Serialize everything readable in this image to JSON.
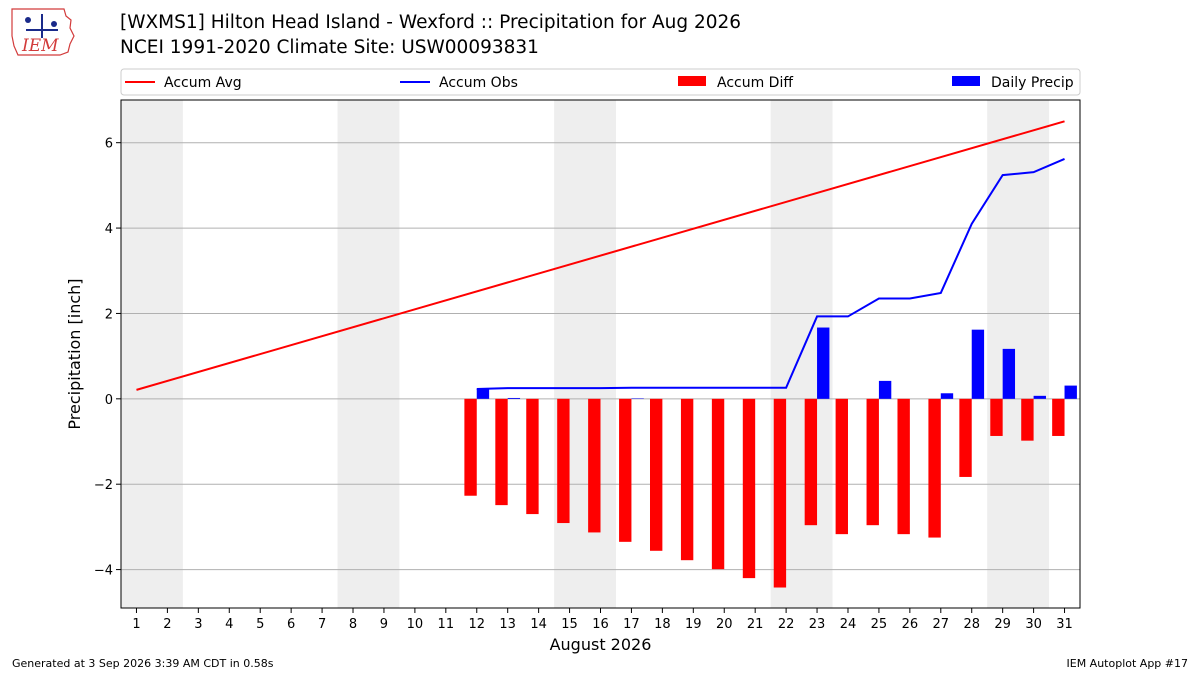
{
  "header": {
    "title_line1": "[WXMS1] Hilton Head Island - Wexford :: Precipitation for Aug 2026",
    "title_line2": "NCEI 1991-2020 Climate Site: USW00093831",
    "logo_text": "IEM"
  },
  "footer": {
    "generated": "Generated at 3 Sep 2026 3:39 AM CDT in 0.58s",
    "app": "IEM Autoplot App #17"
  },
  "chart_data": {
    "type": "bar",
    "xlabel": "August 2026",
    "ylabel": "Precipitation [inch]",
    "ylim": [
      -4.9,
      7.0
    ],
    "xlim": [
      0.5,
      31.5
    ],
    "yticks": [
      -4,
      -2,
      0,
      2,
      4,
      6
    ],
    "ytick_labels": [
      "−4",
      "−2",
      "0",
      "2",
      "4",
      "6"
    ],
    "categories": [
      "1",
      "2",
      "3",
      "4",
      "5",
      "6",
      "7",
      "8",
      "9",
      "10",
      "11",
      "12",
      "13",
      "14",
      "15",
      "16",
      "17",
      "18",
      "19",
      "20",
      "21",
      "22",
      "23",
      "24",
      "25",
      "26",
      "27",
      "28",
      "29",
      "30",
      "31"
    ],
    "weekend_shading": [
      [
        0.5,
        2.5
      ],
      [
        7.5,
        9.5
      ],
      [
        14.5,
        16.5
      ],
      [
        21.5,
        23.5
      ],
      [
        28.5,
        30.5
      ]
    ],
    "grid": "horizontal",
    "legend_position": "top",
    "series": [
      {
        "name": "Accum Avg",
        "kind": "line",
        "color": "#ff0000",
        "x": [
          1,
          31
        ],
        "values": [
          0.21,
          6.5
        ]
      },
      {
        "name": "Accum Obs",
        "kind": "line",
        "color": "#0000ff",
        "x": [
          12,
          13,
          14,
          15,
          16,
          17,
          18,
          19,
          20,
          21,
          22,
          23,
          24,
          25,
          26,
          27,
          28,
          29,
          30,
          31
        ],
        "values": [
          0.23,
          0.25,
          0.25,
          0.25,
          0.25,
          0.26,
          0.26,
          0.26,
          0.26,
          0.26,
          0.26,
          1.93,
          1.93,
          2.35,
          2.35,
          2.48,
          4.1,
          5.24,
          5.31,
          5.62
        ]
      },
      {
        "name": "Accum Diff",
        "kind": "bar",
        "color": "#ff0000",
        "x": [
          12,
          13,
          14,
          15,
          16,
          17,
          18,
          19,
          20,
          21,
          22,
          23,
          24,
          25,
          26,
          27,
          28,
          29,
          30,
          31
        ],
        "values": [
          -2.27,
          -2.49,
          -2.7,
          -2.91,
          -3.13,
          -3.35,
          -3.56,
          -3.78,
          -3.99,
          -4.2,
          -4.42,
          -2.96,
          -3.17,
          -2.96,
          -3.17,
          -3.25,
          -1.83,
          -0.87,
          -0.98,
          -0.87
        ]
      },
      {
        "name": "Daily Precip",
        "kind": "bar",
        "color": "#0000ff",
        "x": [
          12,
          13,
          14,
          15,
          16,
          17,
          18,
          19,
          20,
          21,
          22,
          23,
          24,
          25,
          26,
          27,
          28,
          29,
          30,
          31
        ],
        "values": [
          0.23,
          0.02,
          0,
          0,
          0,
          0.01,
          0,
          0,
          0,
          0,
          0,
          1.67,
          0,
          0.42,
          0,
          0.13,
          1.62,
          1.17,
          0.07,
          0.31
        ]
      }
    ]
  }
}
